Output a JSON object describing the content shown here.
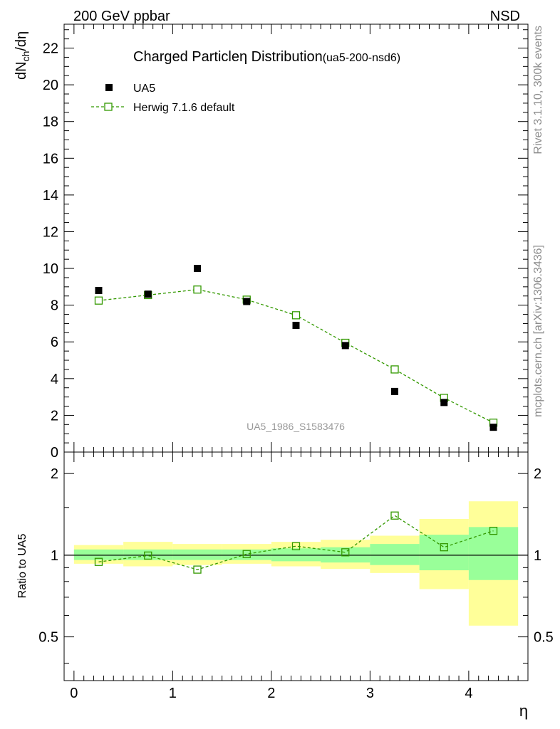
{
  "header": {
    "left": "200 GeV ppbar",
    "right": "NSD"
  },
  "side_labels": {
    "top": "Rivet 3.1.10,  300k events",
    "bottom": "mcplots.cern.ch [arXiv:1306.3436]"
  },
  "watermark": "UA5_1986_S1583476",
  "colors": {
    "mc": "#339900",
    "data": "#000000",
    "band_inner": "#99ff99",
    "band_outer": "#ffff99"
  },
  "chart_data": [
    {
      "type": "scatter",
      "title": "Charged Particle",
      "title_symbol": "η",
      "title_suffix": " Distribution",
      "title_ref": "(ua5-200-nsd6)",
      "ylabel_main": "dN",
      "ylabel_sub": "ch",
      "ylabel_tail": "/dη",
      "xlim": [
        -0.1,
        4.6
      ],
      "ylim": [
        0,
        23.3
      ],
      "yticks": [
        0,
        2,
        4,
        6,
        8,
        10,
        12,
        14,
        16,
        18,
        20,
        22
      ],
      "legend_position": "top-left",
      "series": [
        {
          "name": "UA5",
          "marker": "filled-square",
          "x": [
            0.25,
            0.75,
            1.25,
            1.75,
            2.25,
            2.75,
            3.25,
            3.75,
            4.25
          ],
          "y": [
            8.8,
            8.6,
            10.0,
            8.2,
            6.9,
            5.8,
            3.3,
            2.7,
            1.35
          ]
        },
        {
          "name": "Herwig 7.1.6 default",
          "marker": "open-square",
          "line": "dashed",
          "x": [
            0.25,
            0.75,
            1.25,
            1.75,
            2.25,
            2.75,
            3.25,
            3.75,
            4.25
          ],
          "y": [
            8.25,
            8.55,
            8.85,
            8.3,
            7.45,
            5.95,
            4.5,
            2.95,
            1.6
          ]
        }
      ]
    },
    {
      "type": "scatter",
      "ylabel": "Ratio to UA5",
      "xlabel": "η",
      "xlim": [
        -0.1,
        4.6
      ],
      "ylim": [
        0.345,
        2.4
      ],
      "log_y": true,
      "yticks": [
        0.5,
        1,
        2
      ],
      "xticks": [
        0,
        1,
        2,
        3,
        4
      ],
      "bins": [
        0,
        0.5,
        1,
        1.5,
        2,
        2.5,
        3,
        3.5,
        4,
        4.5
      ],
      "band_inner": {
        "lo": [
          0.96,
          0.96,
          0.96,
          0.96,
          0.95,
          0.94,
          0.92,
          0.88,
          0.81
        ],
        "hi": [
          1.05,
          1.05,
          1.05,
          1.05,
          1.06,
          1.07,
          1.1,
          1.19,
          1.27
        ]
      },
      "band_outer": {
        "lo": [
          0.93,
          0.91,
          0.92,
          0.93,
          0.91,
          0.89,
          0.86,
          0.75,
          0.55
        ],
        "hi": [
          1.09,
          1.12,
          1.1,
          1.1,
          1.12,
          1.14,
          1.18,
          1.36,
          1.58
        ]
      },
      "series": [
        {
          "name": "Herwig 7.1.6 default",
          "x": [
            0.25,
            0.75,
            1.25,
            1.75,
            2.25,
            2.75,
            3.25,
            3.75,
            4.25
          ],
          "y": [
            0.945,
            0.997,
            0.885,
            1.01,
            1.08,
            1.025,
            1.4,
            1.07,
            1.23
          ]
        }
      ]
    }
  ]
}
